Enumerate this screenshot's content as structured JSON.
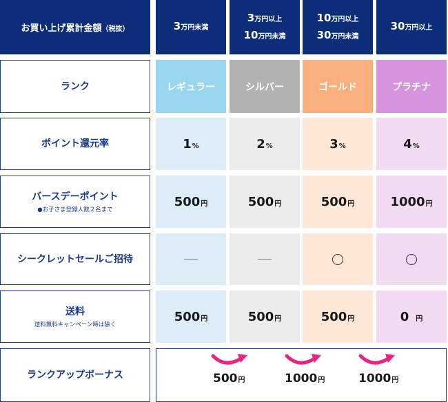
{
  "header": {
    "label": {
      "main": "お買い上げ累計金額",
      "note": "（税抜）"
    },
    "tiers": [
      {
        "lines": [
          [
            "3",
            "万円未満"
          ]
        ]
      },
      {
        "lines": [
          [
            "3",
            "万円以上"
          ],
          [
            "10",
            "万円未満"
          ]
        ]
      },
      {
        "lines": [
          [
            "10",
            "万円以上"
          ],
          [
            "30",
            "万円未満"
          ]
        ]
      },
      {
        "lines": [
          [
            "30",
            "万円以上"
          ]
        ]
      }
    ]
  },
  "colors": {
    "header_bg": "#0c2d78",
    "regular": "#9ad6ee",
    "silver": "#b2b2b2",
    "gold": "#f9b07c",
    "platinum": "#d694dd",
    "regular_light": "#dcedf8",
    "silver_light": "#ececec",
    "gold_light": "#fde7d7",
    "platinum_light": "#f1dcf3",
    "arrow": "#e6257e"
  },
  "rows": {
    "rank": {
      "label": "ランク",
      "values": [
        "レギュラー",
        "シルバー",
        "ゴールド",
        "プラチナ"
      ]
    },
    "point_rate": {
      "label": "ポイント還元率",
      "values": [
        "1",
        "2",
        "3",
        "4"
      ],
      "unit": "%"
    },
    "birthday": {
      "label": "バースデーポイント",
      "sub": "●お子さま登録人数２名まで",
      "values": [
        "500",
        "500",
        "500",
        "1000"
      ],
      "unit": "円"
    },
    "secret_sale": {
      "label": "シークレットセールご招待",
      "values": [
        "dash",
        "dash",
        "circle",
        "circle"
      ]
    },
    "shipping": {
      "label": "送料",
      "sub": "送料無料キャンペーン時は除く",
      "values": [
        "500",
        "500",
        "500",
        "0"
      ],
      "unit": "円"
    },
    "rank_up_bonus": {
      "label": "ランクアップボーナス",
      "values": [
        "500",
        "1000",
        "1000"
      ],
      "unit": "円"
    }
  }
}
